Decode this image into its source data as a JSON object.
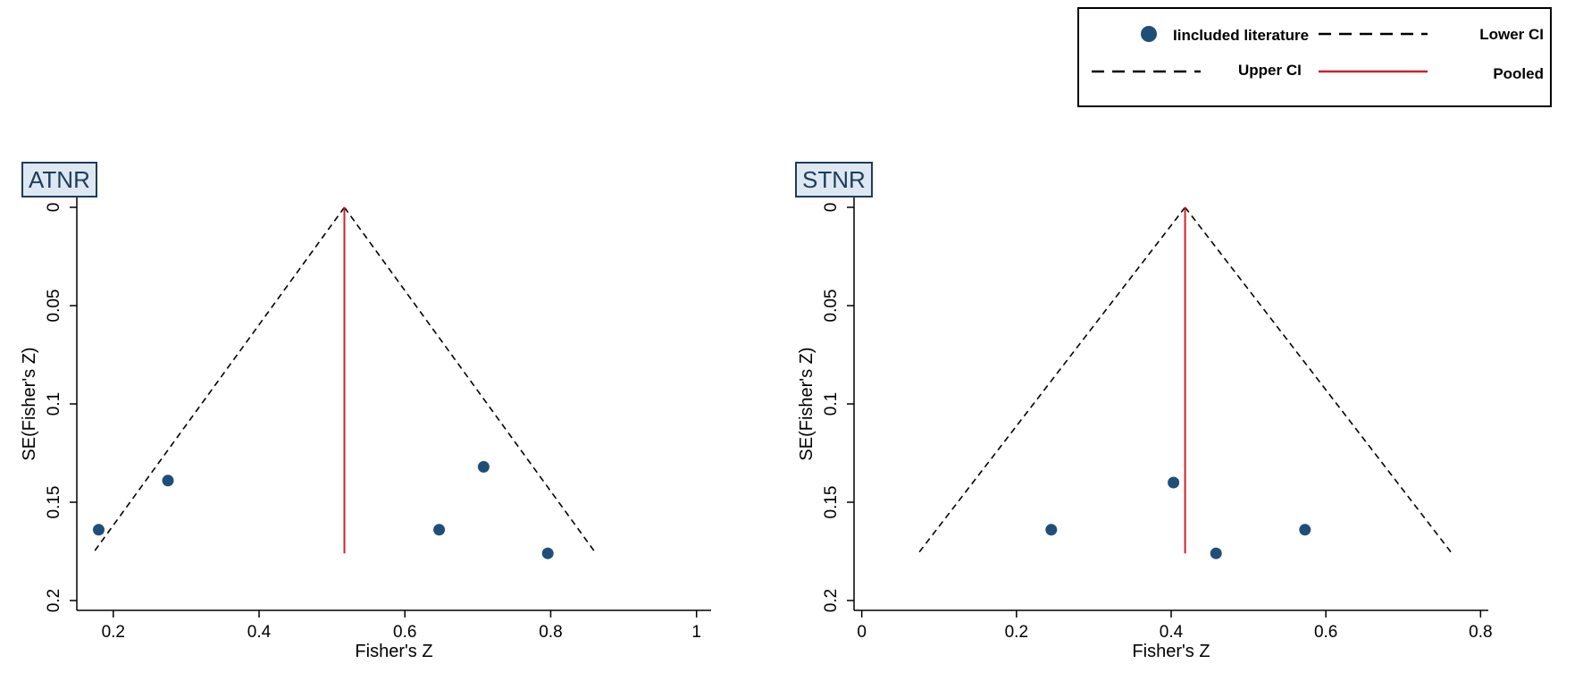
{
  "legend": {
    "items": [
      {
        "label": "Iincluded literature",
        "kind": "marker"
      },
      {
        "label": "Lower CI",
        "kind": "dash"
      },
      {
        "label": "Upper CI",
        "kind": "dash"
      },
      {
        "label": "Pooled",
        "kind": "line"
      }
    ]
  },
  "colors": {
    "marker": "#1f4e79",
    "pooled": "#d0202a",
    "ci": "#000000",
    "tag_bg": "#dde8f2",
    "tag_fg": "#1f3b5a"
  },
  "chart_data": [
    {
      "type": "scatter",
      "panel_tag": "ATNR",
      "xlabel": "Fisher's Z",
      "ylabel": "SE(Fisher's Z)",
      "xlim": [
        0.15,
        1.02
      ],
      "ylim": [
        0.205,
        -0.005
      ],
      "y_inverted": true,
      "xticks": [
        0.2,
        0.4,
        0.6,
        0.8,
        1
      ],
      "xtick_labels": [
        "0.2",
        "0.4",
        "0.6",
        "0.8",
        "1"
      ],
      "yticks": [
        0,
        0.05,
        0.1,
        0.15,
        0.2
      ],
      "ytick_labels": [
        "0",
        "0.05",
        "0.1",
        "0.15",
        "0.2"
      ],
      "pooled": 0.517,
      "ci_se_max": 0.176,
      "points": [
        {
          "x": 0.18,
          "y": 0.164
        },
        {
          "x": 0.275,
          "y": 0.139
        },
        {
          "x": 0.647,
          "y": 0.164
        },
        {
          "x": 0.708,
          "y": 0.132
        },
        {
          "x": 0.796,
          "y": 0.176
        }
      ]
    },
    {
      "type": "scatter",
      "panel_tag": "STNR",
      "xlabel": "Fisher's Z",
      "ylabel": "SE(Fisher's Z)",
      "xlim": [
        -0.01,
        0.81
      ],
      "ylim": [
        0.205,
        -0.005
      ],
      "y_inverted": true,
      "xticks": [
        0,
        0.2,
        0.4,
        0.6,
        0.8
      ],
      "xtick_labels": [
        "0",
        "0.2",
        "0.4",
        "0.6",
        "0.8"
      ],
      "yticks": [
        0,
        0.05,
        0.1,
        0.15,
        0.2
      ],
      "ytick_labels": [
        "0",
        "0.05",
        "0.1",
        "0.15",
        "0.2"
      ],
      "pooled": 0.418,
      "ci_se_max": 0.176,
      "points": [
        {
          "x": 0.245,
          "y": 0.164
        },
        {
          "x": 0.403,
          "y": 0.14
        },
        {
          "x": 0.458,
          "y": 0.176
        },
        {
          "x": 0.573,
          "y": 0.164
        }
      ]
    }
  ]
}
